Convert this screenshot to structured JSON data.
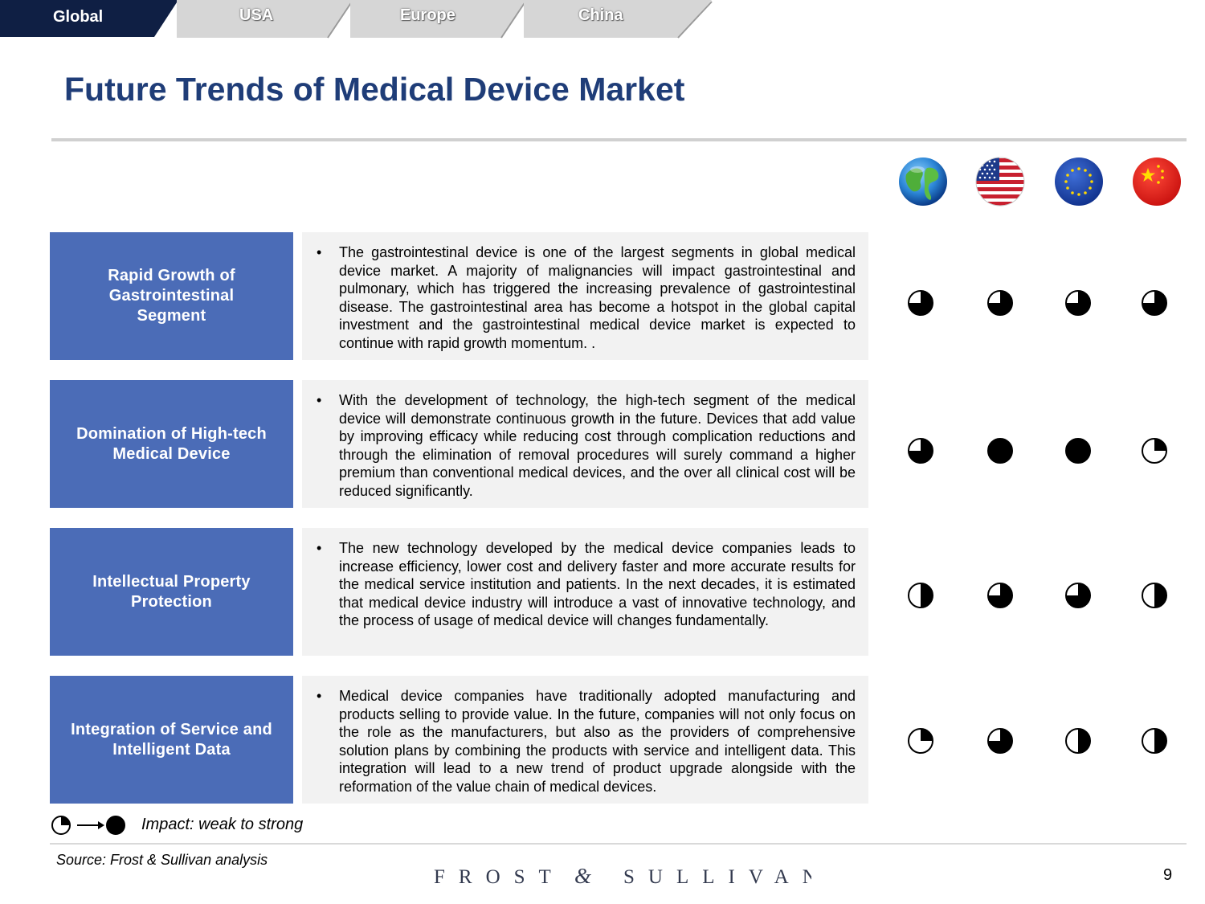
{
  "tabs": [
    {
      "label": "Global",
      "active": true
    },
    {
      "label": "USA",
      "active": false
    },
    {
      "label": "Europe",
      "active": false
    },
    {
      "label": "China",
      "active": false
    }
  ],
  "title": "Future Trends of Medical Device Market",
  "regions": [
    "globe-icon",
    "usa-flag-icon",
    "eu-flag-icon",
    "china-flag-icon"
  ],
  "rows": [
    {
      "label": "Rapid Growth of\nGastrointestinal\nSegment",
      "description": "The gastrointestinal device is one of the largest segments in global medical device market. A majority of malignancies will impact gastrointestinal and pulmonary, which has triggered the increasing prevalence of gastrointestinal disease. The gastrointestinal area has become a hotspot in the global capital investment and the gastrointestinal medical device market is expected to continue with rapid growth momentum. .",
      "impact": [
        0.75,
        0.75,
        0.75,
        0.75
      ]
    },
    {
      "label": "Domination of High-tech\nMedical Device",
      "description": "With the development of technology, the high-tech segment of the medical device will demonstrate continuous growth in the future. Devices that add value by improving efficacy while reducing cost through complication reductions and through the elimination of removal procedures will surely command a higher premium than conventional medical devices, and the over all clinical cost will be reduced significantly.",
      "impact": [
        0.75,
        1.0,
        1.0,
        0.25
      ]
    },
    {
      "label": "Intellectual Property\nProtection",
      "description": "The new technology developed by the medical device companies leads to increase efficiency, lower cost and delivery faster and more accurate results for the medical service institution and patients. In the next decades, it is estimated that medical device industry will introduce a vast of innovative technology, and the process of usage of medical device will changes fundamentally.",
      "impact": [
        0.5,
        0.75,
        0.75,
        0.5
      ]
    },
    {
      "label": "Integration of Service and\nIntelligent Data",
      "description": "Medical device companies have traditionally adopted manufacturing and products selling to provide value. In the future, companies will not only focus on the role as the manufacturers, but also as the providers of comprehensive solution plans by combining the products with service and intelligent data. This integration will lead to a new trend of product upgrade alongside with the reformation of the value chain of medical devices.",
      "impact": [
        0.25,
        0.75,
        0.5,
        0.5
      ]
    }
  ],
  "legend": {
    "text": "Impact: weak to strong",
    "from": 0.25,
    "to": 1.0
  },
  "source": "Source: Frost & Sullivan analysis",
  "brand": "FROST & SULLIVAN",
  "page_number": "9",
  "colors": {
    "title": "#1f3d78",
    "label_bg": "#4b6cb7",
    "tab_active": "#0f1f44",
    "tab_inactive": "#d6d6d6"
  }
}
